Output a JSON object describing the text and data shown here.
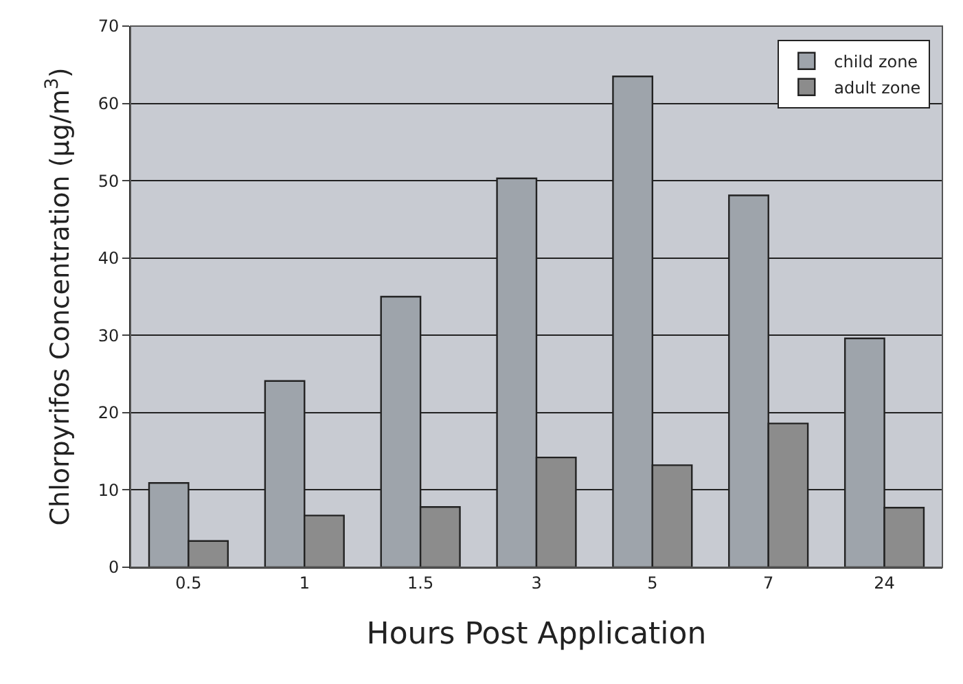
{
  "chart_data": {
    "type": "bar",
    "xlabel": "Hours Post Application",
    "ylabel": "Chlorpyrifos Concentration (µg/m$^{3}$)",
    "categories": [
      "0.5",
      "1",
      "1.5",
      "3",
      "5",
      "7",
      "24"
    ],
    "series": [
      {
        "name": "child zone",
        "color": "#9ea4ab",
        "values": [
          10.9,
          24.1,
          35.0,
          50.3,
          63.5,
          48.1,
          29.6
        ]
      },
      {
        "name": "adult zone",
        "color": "#8c8c8c",
        "values": [
          3.4,
          6.7,
          7.8,
          14.2,
          13.2,
          18.6,
          7.7
        ]
      }
    ],
    "ylim": [
      0,
      70
    ],
    "yticks": [
      0,
      10,
      20,
      30,
      40,
      50,
      60,
      70
    ],
    "grid": "y",
    "legend": "top right"
  }
}
